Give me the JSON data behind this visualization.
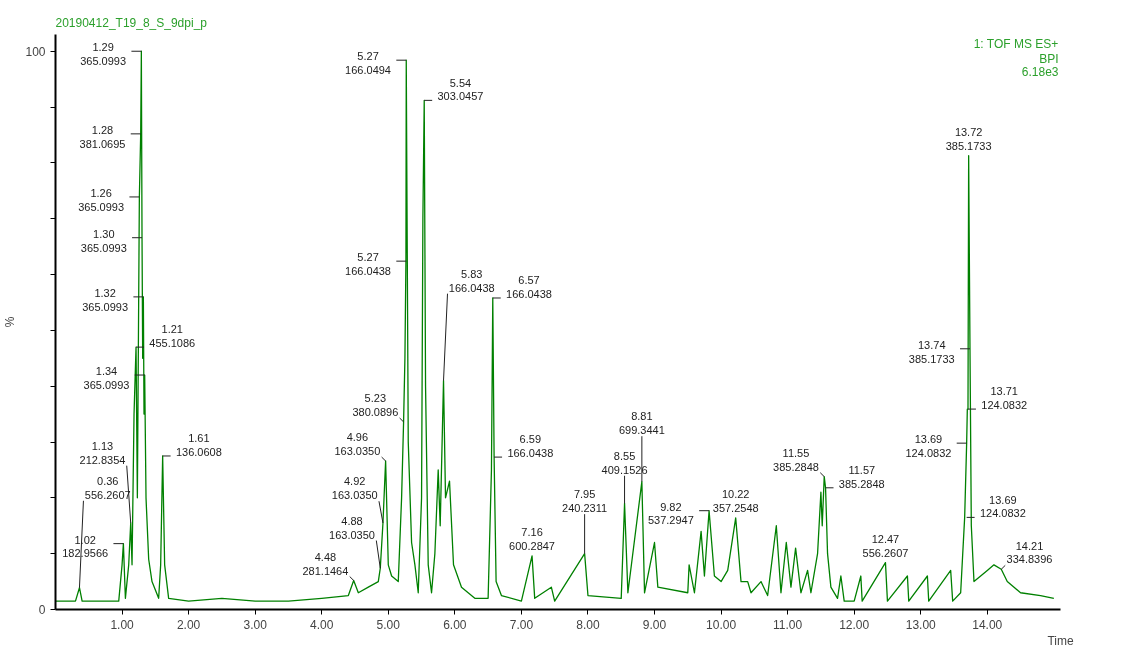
{
  "chart_data": {
    "type": "line",
    "title": "20190412_T19_8_S_9dpi_p",
    "xlabel": "Time",
    "ylabel": "%",
    "xlim": [
      0,
      15.1
    ],
    "ylim": [
      0,
      103
    ],
    "xticks": [
      {
        "value": 1,
        "label": "1.00"
      },
      {
        "value": 2,
        "label": "2.00"
      },
      {
        "value": 3,
        "label": "3.00"
      },
      {
        "value": 4,
        "label": "4.00"
      },
      {
        "value": 5,
        "label": "5.00"
      },
      {
        "value": 6,
        "label": "6.00"
      },
      {
        "value": 7,
        "label": "7.00"
      },
      {
        "value": 8,
        "label": "8.00"
      },
      {
        "value": 9,
        "label": "9.00"
      },
      {
        "value": 10,
        "label": "10.00"
      },
      {
        "value": 11,
        "label": "11.00"
      },
      {
        "value": 12,
        "label": "12.00"
      },
      {
        "value": 13,
        "label": "13.00"
      },
      {
        "value": 14,
        "label": "14.00"
      }
    ],
    "yticks": [
      0,
      {
        "value": 10,
        "label": null
      },
      {
        "value": 20,
        "label": null
      },
      {
        "value": 30,
        "label": null
      },
      {
        "value": 40,
        "label": null
      },
      {
        "value": 50,
        "label": null
      },
      {
        "value": 60,
        "label": null
      },
      {
        "value": 70,
        "label": null
      },
      {
        "value": 80,
        "label": null
      },
      {
        "value": 90,
        "label": null
      },
      100
    ],
    "grid": false,
    "series": [
      {
        "color": "#008000",
        "x": [
          0.0,
          0.3,
          0.36,
          0.4,
          0.95,
          1.0,
          1.02,
          1.05,
          1.1,
          1.13,
          1.15,
          1.18,
          1.21,
          1.23,
          1.26,
          1.28,
          1.29,
          1.3,
          1.31,
          1.32,
          1.33,
          1.34,
          1.36,
          1.4,
          1.45,
          1.55,
          1.58,
          1.61,
          1.64,
          1.7,
          2.0,
          2.5,
          3.0,
          3.5,
          4.0,
          4.4,
          4.48,
          4.55,
          4.7,
          4.85,
          4.88,
          4.92,
          4.96,
          5.0,
          5.05,
          5.15,
          5.2,
          5.23,
          5.25,
          5.265,
          5.27,
          5.3,
          5.35,
          5.4,
          5.45,
          5.5,
          5.52,
          5.54,
          5.56,
          5.6,
          5.65,
          5.7,
          5.75,
          5.78,
          5.83,
          5.86,
          5.92,
          5.98,
          6.1,
          6.3,
          6.5,
          6.55,
          6.57,
          6.59,
          6.62,
          6.7,
          7.0,
          7.16,
          7.2,
          7.45,
          7.5,
          7.95,
          8.0,
          8.5,
          8.55,
          8.6,
          8.81,
          8.85,
          9.0,
          9.05,
          9.5,
          9.52,
          9.6,
          9.7,
          9.75,
          9.82,
          9.9,
          10.0,
          10.1,
          10.22,
          10.3,
          10.4,
          10.45,
          10.6,
          10.7,
          10.83,
          10.9,
          10.98,
          11.05,
          11.12,
          11.2,
          11.3,
          11.35,
          11.45,
          11.5,
          11.52,
          11.55,
          11.57,
          11.6,
          11.65,
          11.75,
          11.8,
          11.85,
          12.0,
          12.1,
          12.12,
          12.47,
          12.5,
          12.8,
          12.82,
          13.1,
          13.12,
          13.45,
          13.48,
          13.6,
          13.66,
          13.69,
          13.7,
          13.71,
          13.72,
          13.74,
          13.76,
          13.8,
          14.0,
          14.1,
          14.21,
          14.3,
          14.5,
          14.8,
          15.0
        ],
        "values": [
          1.5,
          1.5,
          3.9,
          1.5,
          1.5,
          8,
          11.8,
          2,
          8,
          15.5,
          8,
          35,
          47,
          20,
          73.9,
          85.2,
          100,
          66.6,
          45,
          56,
          35,
          42,
          20,
          9,
          5,
          2,
          8,
          27.5,
          8,
          2,
          1.5,
          2,
          1.5,
          1.5,
          2,
          2.5,
          5.2,
          3,
          4,
          5,
          7.4,
          15.5,
          26.6,
          8,
          6,
          5,
          20,
          33.6,
          45,
          62.4,
          98.4,
          30,
          12,
          8,
          3,
          20,
          70,
          91.2,
          40,
          8,
          3,
          10,
          25,
          15,
          41,
          20,
          23,
          8,
          4,
          2,
          2,
          25,
          55.8,
          27.3,
          5,
          2.5,
          1.5,
          9.6,
          2,
          4,
          1.5,
          10,
          2.5,
          2,
          19,
          3,
          22.9,
          3,
          12,
          4,
          3,
          8,
          3,
          14,
          6,
          17.7,
          6,
          5,
          7,
          16.4,
          5,
          5,
          3,
          5,
          2.5,
          15,
          3,
          12,
          4,
          11,
          3,
          7,
          3,
          10,
          21,
          15,
          23.8,
          21.8,
          10,
          4,
          2,
          6,
          1.5,
          1.5,
          6,
          1.5,
          8.4,
          1.5,
          6,
          1.5,
          6,
          1.5,
          7,
          1.5,
          3,
          16.5,
          29.8,
          35.9,
          35.9,
          81.3,
          46.7,
          15,
          5,
          7,
          8,
          7.2,
          5,
          3,
          2.5,
          2
        ]
      }
    ],
    "annotations": [
      "1: TOF MS ES+",
      "BPI",
      "6.18e3",
      {
        "text": "1.29\n365.0993",
        "x": 1.29,
        "y": 100
      },
      {
        "text": "1.28\n381.0695",
        "x": 1.28,
        "y": 85.2
      },
      {
        "text": "1.26\n365.0993",
        "x": 1.26,
        "y": 73.9
      },
      {
        "text": "1.30\n365.0993",
        "x": 1.3,
        "y": 66.6
      },
      {
        "text": "1.32\n365.0993",
        "x": 1.32,
        "y": 56
      },
      {
        "text": "1.21\n455.1086",
        "x": 1.21,
        "y": 47
      },
      {
        "text": "1.34\n365.0993",
        "x": 1.34,
        "y": 42
      },
      {
        "text": "1.61\n136.0608",
        "x": 1.61,
        "y": 27.5
      },
      {
        "text": "1.13\n212.8354",
        "x": 1.13,
        "y": 15.5
      },
      {
        "text": "1.02\n182.9566",
        "x": 1.02,
        "y": 11.8
      },
      {
        "text": "0.36\n556.2607",
        "x": 0.36,
        "y": 3.9
      },
      {
        "text": "4.48\n281.1464",
        "x": 4.48,
        "y": 5.2
      },
      {
        "text": "4.88\n163.0350",
        "x": 4.88,
        "y": 7.4
      },
      {
        "text": "4.92\n163.0350",
        "x": 4.92,
        "y": 15.5
      },
      {
        "text": "4.96\n163.0350",
        "x": 4.96,
        "y": 26.6
      },
      {
        "text": "5.23\n380.0896",
        "x": 5.23,
        "y": 33.6
      },
      {
        "text": "5.27\n166.0494",
        "x": 5.27,
        "y": 98.4
      },
      {
        "text": "5.27\n166.0438",
        "x": 5.27,
        "y": 62.4
      },
      {
        "text": "5.54\n303.0457",
        "x": 5.54,
        "y": 91.2
      },
      {
        "text": "5.83\n166.0438",
        "x": 5.83,
        "y": 41
      },
      {
        "text": "6.57\n166.0438",
        "x": 6.57,
        "y": 55.8
      },
      {
        "text": "6.59\n166.0438",
        "x": 6.59,
        "y": 27.3
      },
      {
        "text": "7.16\n600.2847",
        "x": 7.16,
        "y": 9.6
      },
      {
        "text": "7.95\n240.2311",
        "x": 7.95,
        "y": 10
      },
      {
        "text": "8.55\n409.1526",
        "x": 8.55,
        "y": 19
      },
      {
        "text": "8.81\n699.3441",
        "x": 8.81,
        "y": 22.9
      },
      {
        "text": "9.82\n537.2947",
        "x": 9.82,
        "y": 17.7
      },
      {
        "text": "10.22\n357.2548",
        "x": 10.22,
        "y": 16.4
      },
      {
        "text": "11.55\n385.2848",
        "x": 11.55,
        "y": 23.8
      },
      {
        "text": "11.57\n385.2848",
        "x": 11.57,
        "y": 21.8
      },
      {
        "text": "12.47\n556.2607",
        "x": 12.47,
        "y": 8.4
      },
      {
        "text": "13.72\n385.1733",
        "x": 13.72,
        "y": 81.3
      },
      {
        "text": "13.74\n385.1733",
        "x": 13.74,
        "y": 46.7
      },
      {
        "text": "13.71\n124.0832",
        "x": 13.71,
        "y": 35.9
      },
      {
        "text": "13.69\n124.0832",
        "x": 13.69,
        "y": 29.8
      },
      {
        "text": "13.69\n124.0832",
        "x": 13.69,
        "y": 16.5
      },
      {
        "text": "14.21\n334.8396",
        "x": 14.21,
        "y": 7.2
      }
    ]
  }
}
